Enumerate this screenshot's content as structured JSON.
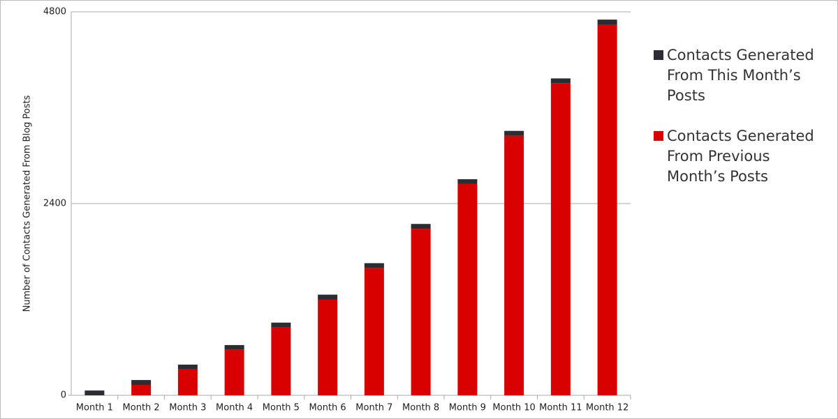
{
  "chart_data": {
    "type": "stacked_bar",
    "y_label": "Number of Contacts Generated From Blog Posts",
    "categories": [
      "Month 1",
      "Month 2",
      "Month 3",
      "Month 4",
      "Month 5",
      "Month 6",
      "Month 7",
      "Month 8",
      "Month 9",
      "Month 10",
      "Month 11",
      "Month 12"
    ],
    "series": [
      {
        "name": "Contacts Generated From This Month’s Posts",
        "color": "#2b2d33",
        "values": [
          60,
          60,
          60,
          60,
          60,
          60,
          60,
          60,
          60,
          60,
          60,
          60
        ]
      },
      {
        "name": "Contacts Generated From Previous Month’s Posts",
        "color": "#d90000",
        "values": [
          0,
          131,
          324,
          569,
          850,
          1200,
          1594,
          2085,
          2645,
          3250,
          3907,
          4643
        ]
      }
    ],
    "ylim": [
      0,
      4800
    ],
    "yticks": [
      0,
      2400,
      4800
    ],
    "grid": true
  }
}
